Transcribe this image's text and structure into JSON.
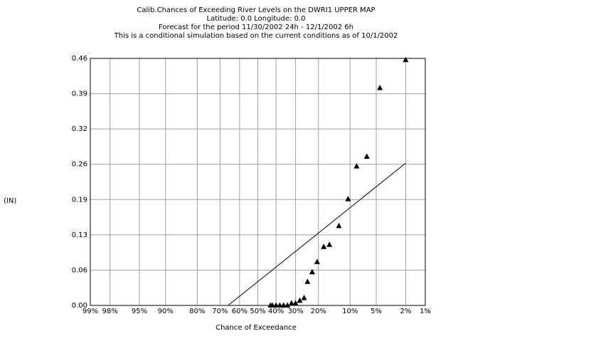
{
  "chart_data": {
    "type": "scatter",
    "title_lines": [
      "Calib.Chances of Exceeding River Levels on the DWRI1 UPPER MAP",
      "Latitude: 0.0    Longitude:  0.0",
      "Forecast for the period 11/30/2002 24h - 12/1/2002 6h",
      "This is a conditional simulation based on the current conditions as of 10/1/2002"
    ],
    "xlabel": "Chance of Exceedance",
    "ylabel": "(IN)",
    "x_scale": "normal-probability",
    "x_ticks": [
      {
        "p": 99,
        "label": "99%"
      },
      {
        "p": 98,
        "label": "98%"
      },
      {
        "p": 95,
        "label": "95%"
      },
      {
        "p": 90,
        "label": "90%"
      },
      {
        "p": 80,
        "label": "80%"
      },
      {
        "p": 70,
        "label": "70%"
      },
      {
        "p": 60,
        "label": "60%"
      },
      {
        "p": 50,
        "label": "50%"
      },
      {
        "p": 40,
        "label": "40%"
      },
      {
        "p": 30,
        "label": "30%"
      },
      {
        "p": 20,
        "label": "20%"
      },
      {
        "p": 10,
        "label": "10%"
      },
      {
        "p": 5,
        "label": "5%"
      },
      {
        "p": 2,
        "label": "2%"
      },
      {
        "p": 1,
        "label": "1%"
      }
    ],
    "y_ticks": [
      "0.00",
      "0.06",
      "0.13",
      "0.19",
      "0.26",
      "0.32",
      "0.39",
      "0.46"
    ],
    "ylim": [
      0,
      0.46
    ],
    "grid": true,
    "series": [
      {
        "kind": "points",
        "marker": "triangle",
        "x": [
          43,
          42,
          40,
          38,
          36,
          34,
          32,
          30,
          28,
          26,
          24.5,
          22.5,
          20.5,
          18,
          16,
          13,
          10.5,
          8.5,
          6.5,
          4.5,
          2
        ],
        "y": [
          0.0,
          0.0,
          0.0,
          0.0,
          0.0,
          0.0,
          0.004,
          0.004,
          0.009,
          0.014,
          0.044,
          0.062,
          0.081,
          0.109,
          0.113,
          0.148,
          0.198,
          0.259,
          0.277,
          0.405,
          0.457
        ]
      },
      {
        "kind": "line",
        "x": [
          66,
          2
        ],
        "y": [
          0.0,
          0.265
        ]
      }
    ]
  }
}
